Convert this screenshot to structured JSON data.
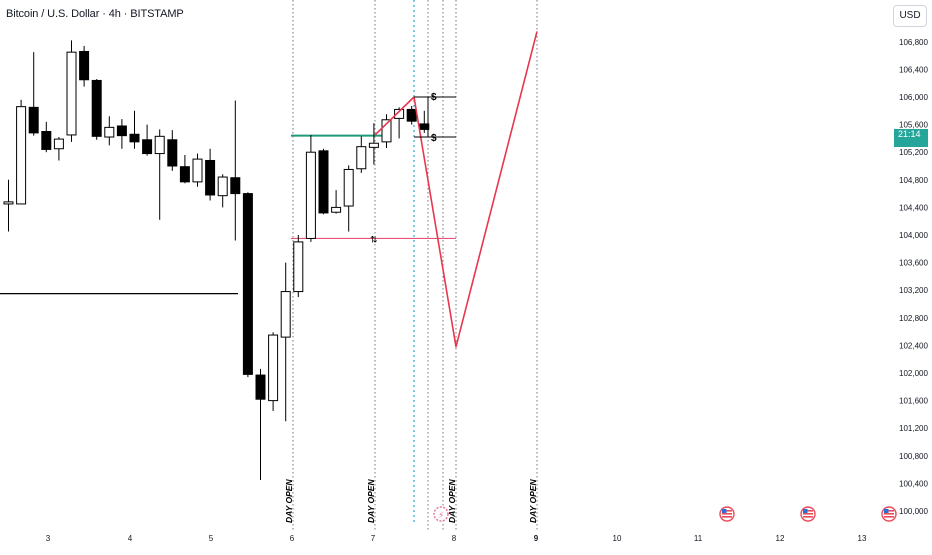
{
  "header": {
    "title": "Bitcoin / U.S. Dollar · 4h · BITSTAMP",
    "currency": "USD",
    "countdown": "21:14"
  },
  "colors": {
    "up_candle": "#ffffff",
    "down_candle": "#000000",
    "day_line": "#555555",
    "cyan_line": "#2aa7d6",
    "red_path": "#e8364f",
    "green_line": "#1e9a7a",
    "pink_line": "#e8537a",
    "price_tag": "#26a69a"
  },
  "chart_data": {
    "type": "candlestick",
    "x": {
      "tick_labels": [
        "3",
        "4",
        "5",
        "6",
        "7",
        "8",
        "9",
        "10",
        "11",
        "12",
        "13"
      ]
    },
    "y": {
      "tick_labels": [
        "106,800",
        "106,400",
        "106,000",
        "105,600",
        "105,200",
        "104,800",
        "104,400",
        "104,000",
        "103,600",
        "103,200",
        "102,800",
        "102,400",
        "102,000",
        "101,600",
        "101,200",
        "100,800",
        "100,400",
        "100,000"
      ],
      "tick_values": [
        106800,
        106400,
        106000,
        105600,
        105200,
        104800,
        104400,
        104000,
        103600,
        103200,
        102800,
        102400,
        102000,
        101600,
        101200,
        100800,
        100400,
        100000
      ]
    },
    "candles": [
      {
        "o": 104450,
        "h": 104800,
        "l": 104050,
        "c": 104480
      },
      {
        "o": 104450,
        "h": 105960,
        "l": 104450,
        "c": 105860
      },
      {
        "o": 105850,
        "h": 106650,
        "l": 105440,
        "c": 105480
      },
      {
        "o": 105500,
        "h": 105640,
        "l": 105200,
        "c": 105240
      },
      {
        "o": 105250,
        "h": 105420,
        "l": 105080,
        "c": 105390
      },
      {
        "o": 105450,
        "h": 106820,
        "l": 105350,
        "c": 106650
      },
      {
        "o": 106660,
        "h": 106740,
        "l": 106150,
        "c": 106250
      },
      {
        "o": 106240,
        "h": 106260,
        "l": 105380,
        "c": 105430
      },
      {
        "o": 105420,
        "h": 105720,
        "l": 105300,
        "c": 105560
      },
      {
        "o": 105580,
        "h": 105680,
        "l": 105250,
        "c": 105440
      },
      {
        "o": 105460,
        "h": 105800,
        "l": 105250,
        "c": 105350
      },
      {
        "o": 105380,
        "h": 105600,
        "l": 105150,
        "c": 105180
      },
      {
        "o": 105180,
        "h": 105530,
        "l": 104220,
        "c": 105430
      },
      {
        "o": 105380,
        "h": 105520,
        "l": 104930,
        "c": 105000
      },
      {
        "o": 104990,
        "h": 105160,
        "l": 104750,
        "c": 104770
      },
      {
        "o": 104770,
        "h": 105180,
        "l": 104700,
        "c": 105100
      },
      {
        "o": 105080,
        "h": 105250,
        "l": 104500,
        "c": 104580
      },
      {
        "o": 104570,
        "h": 104880,
        "l": 104400,
        "c": 104840
      },
      {
        "o": 104830,
        "h": 105950,
        "l": 103920,
        "c": 104600
      },
      {
        "o": 104600,
        "h": 104620,
        "l": 101940,
        "c": 101980
      },
      {
        "o": 101970,
        "h": 102060,
        "l": 100450,
        "c": 101620
      },
      {
        "o": 101600,
        "h": 102590,
        "l": 101450,
        "c": 102550
      },
      {
        "o": 102520,
        "h": 103600,
        "l": 101300,
        "c": 103180
      },
      {
        "o": 103180,
        "h": 104000,
        "l": 103100,
        "c": 103900
      },
      {
        "o": 103950,
        "h": 105450,
        "l": 103900,
        "c": 105200
      },
      {
        "o": 105220,
        "h": 105250,
        "l": 104300,
        "c": 104320
      },
      {
        "o": 104330,
        "h": 104650,
        "l": 104310,
        "c": 104400
      },
      {
        "o": 104420,
        "h": 105010,
        "l": 104050,
        "c": 104950
      },
      {
        "o": 104960,
        "h": 105430,
        "l": 104900,
        "c": 105280
      },
      {
        "o": 105270,
        "h": 105620,
        "l": 105020,
        "c": 105330
      },
      {
        "o": 105350,
        "h": 105750,
        "l": 105260,
        "c": 105670
      },
      {
        "o": 105690,
        "h": 105850,
        "l": 105400,
        "c": 105820
      },
      {
        "o": 105820,
        "h": 105870,
        "l": 105600,
        "c": 105650
      },
      {
        "o": 105610,
        "h": 105800,
        "l": 105480,
        "c": 105530
      }
    ],
    "horizontal_levels": [
      {
        "name": "black-level",
        "value": 103150,
        "color": "#000000"
      },
      {
        "name": "green-level",
        "value": 105440,
        "color": "#1e9a7a"
      },
      {
        "name": "pink-level",
        "value": 103950,
        "color": "#e8537a"
      }
    ],
    "projection_path": [
      {
        "label": "start",
        "price": 105450
      },
      {
        "label": "peak",
        "price": 106000
      },
      {
        "label": "low",
        "price": 102380
      },
      {
        "label": "target",
        "price": 106950
      }
    ],
    "markers": [
      "$",
      "$"
    ],
    "annotations": [
      "DAY OPEN",
      "DAY OPEN",
      "DAY OPEN",
      "DAY OPEN"
    ]
  }
}
